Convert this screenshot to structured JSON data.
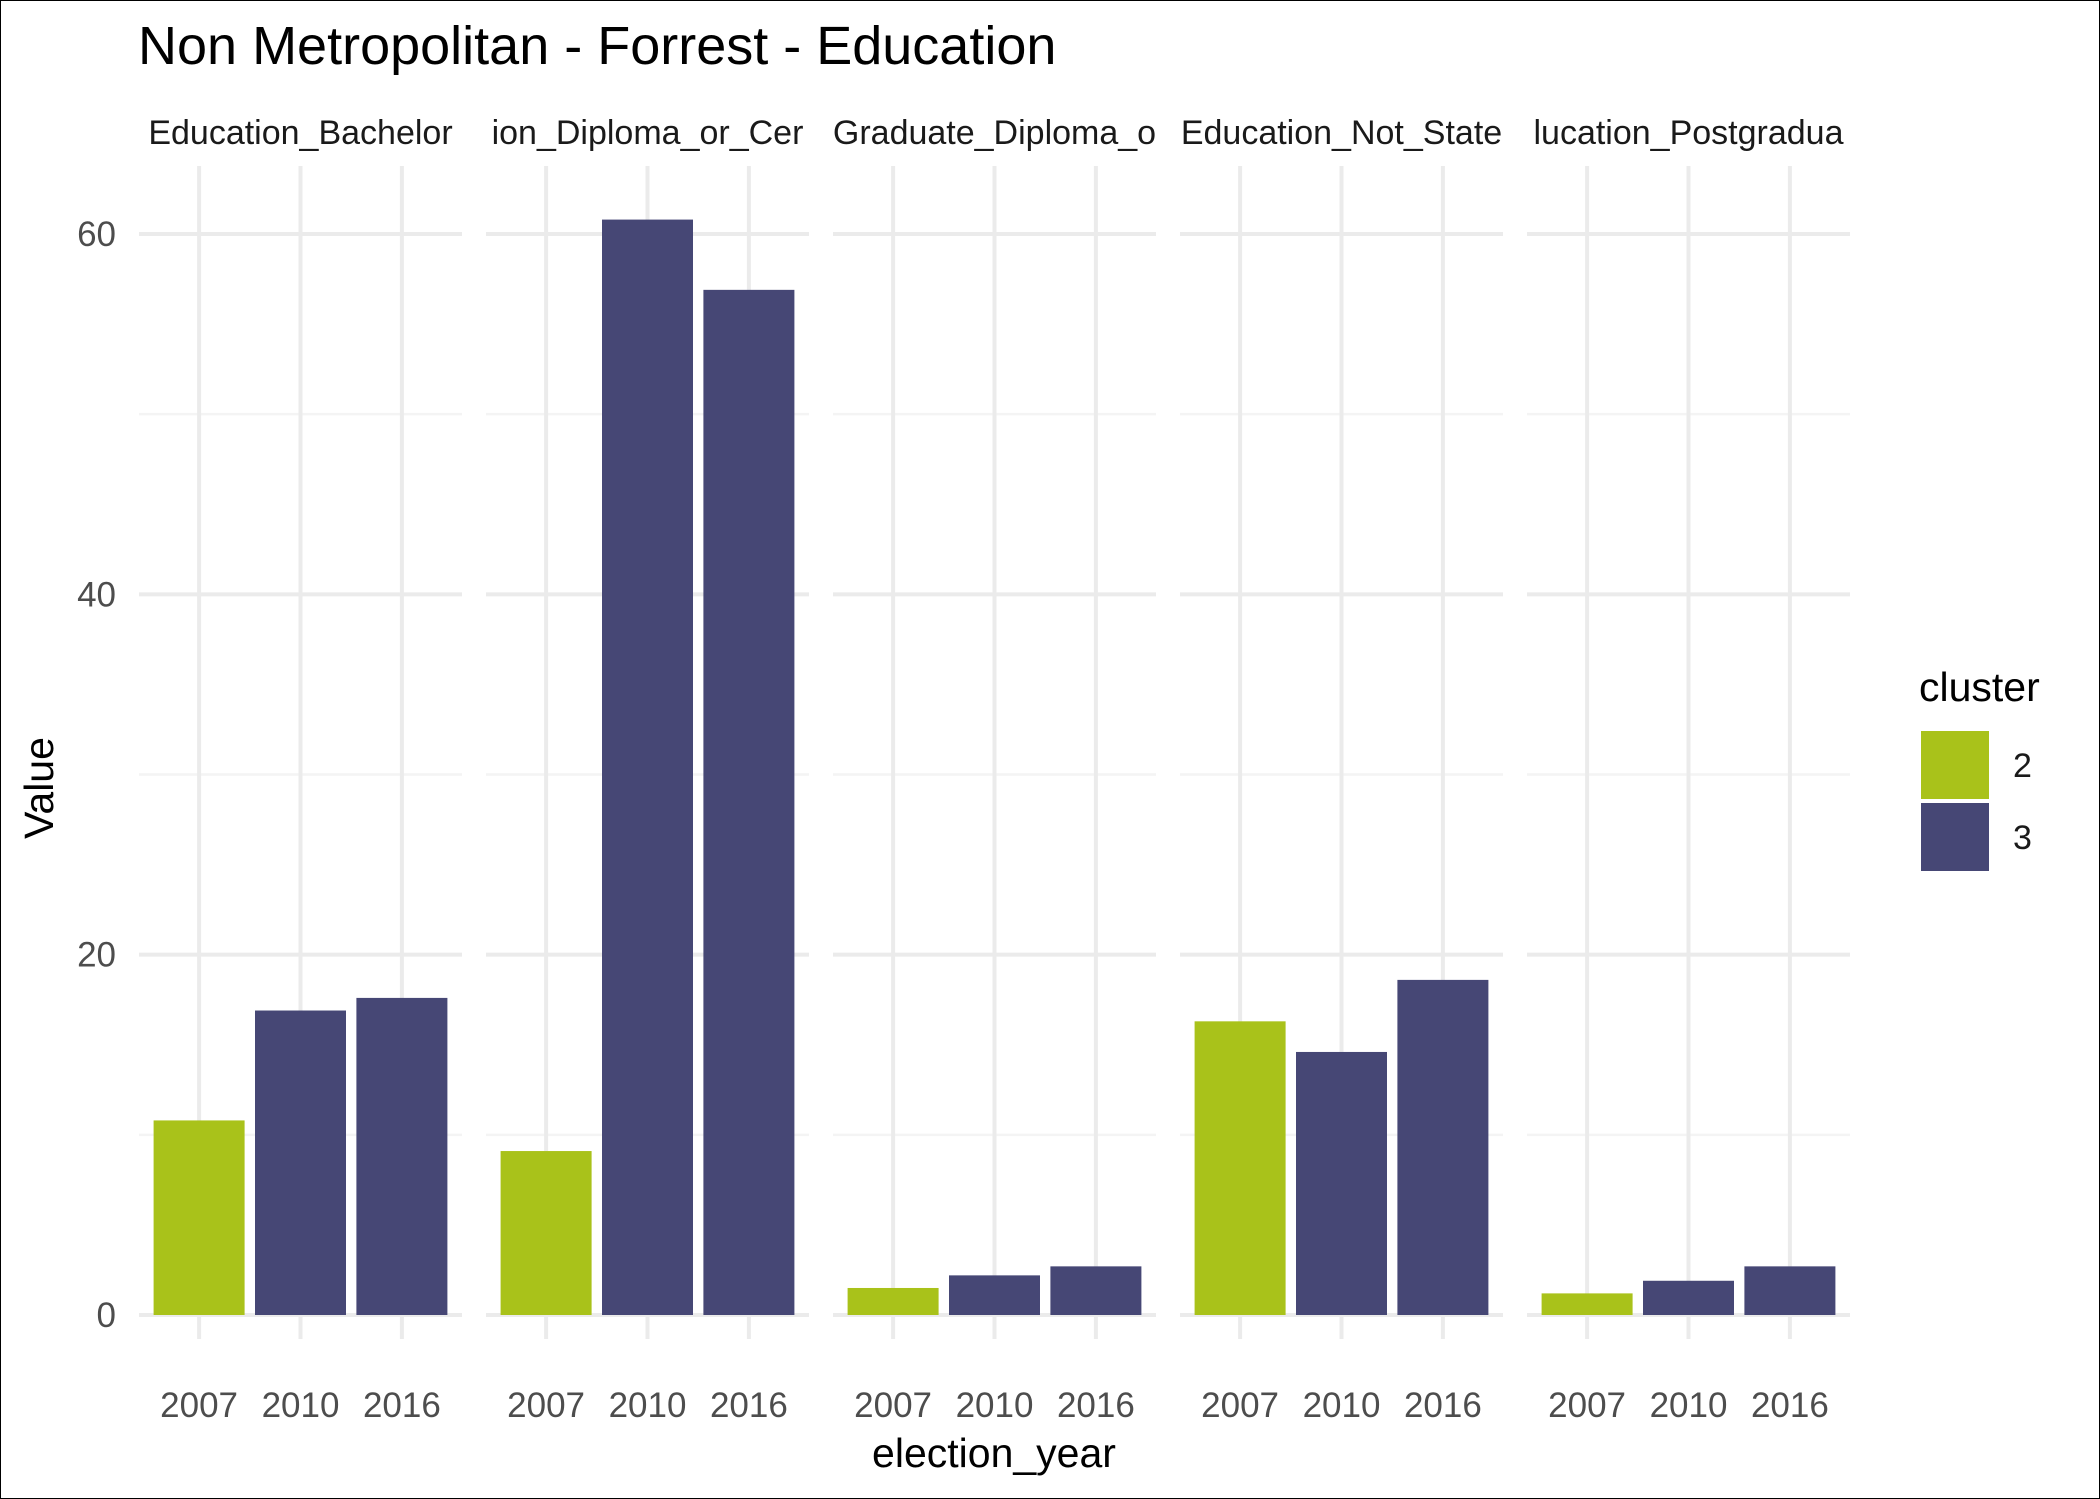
{
  "chart_data": {
    "type": "bar",
    "title": "Non Metropolitan - Forrest - Education",
    "xlabel": "election_year",
    "ylabel": "Value",
    "ylim": [
      0,
      64
    ],
    "y_ticks": [
      0,
      20,
      40,
      60
    ],
    "grid": true,
    "categories": [
      "2007",
      "2010",
      "2016"
    ],
    "facets": [
      {
        "label": "Education_Bachelor",
        "values": [
          10.8,
          16.9,
          17.6
        ],
        "clusters": [
          "2",
          "3",
          "3"
        ]
      },
      {
        "label": "ion_Diploma_or_Cer",
        "values": [
          9.1,
          60.8,
          56.9
        ],
        "clusters": [
          "2",
          "3",
          "3"
        ]
      },
      {
        "label": "Graduate_Diploma_o",
        "values": [
          1.5,
          2.2,
          2.7
        ],
        "clusters": [
          "2",
          "3",
          "3"
        ]
      },
      {
        "label": "Education_Not_State",
        "values": [
          16.3,
          14.6,
          18.6
        ],
        "clusters": [
          "2",
          "3",
          "3"
        ]
      },
      {
        "label": "lucation_Postgradua",
        "values": [
          1.2,
          1.9,
          2.7
        ],
        "clusters": [
          "2",
          "3",
          "3"
        ]
      }
    ],
    "legend": {
      "title": "cluster",
      "placement": "right",
      "items": [
        {
          "label": "2",
          "color": "#a9c21a"
        },
        {
          "label": "3",
          "color": "#464775"
        }
      ]
    }
  }
}
